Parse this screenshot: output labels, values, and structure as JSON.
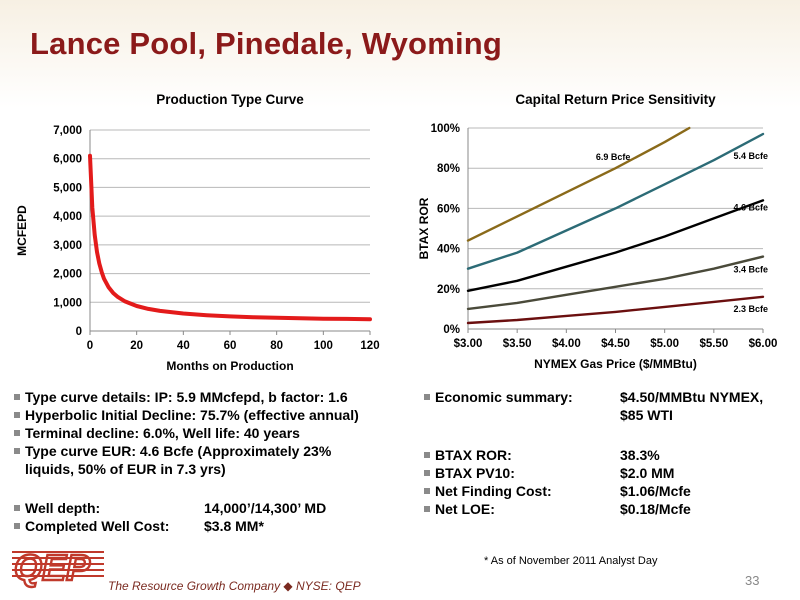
{
  "title": "Lance Pool, Pinedale, Wyoming",
  "chart_data": [
    {
      "type": "line",
      "title": "Production Type Curve",
      "xlabel": "Months on Production",
      "ylabel": "MCFEPD",
      "xlim": [
        0,
        120
      ],
      "ylim": [
        0,
        7000
      ],
      "xticks": [
        "0",
        "20",
        "40",
        "60",
        "80",
        "100",
        "120"
      ],
      "yticks": [
        "0",
        "1,000",
        "2,000",
        "3,000",
        "4,000",
        "5,000",
        "6,000",
        "7,000"
      ],
      "grid": true,
      "series": [
        {
          "color": "#e31b1b",
          "x": [
            0,
            1,
            2,
            3,
            4,
            5,
            6,
            8,
            10,
            12,
            15,
            20,
            25,
            30,
            40,
            50,
            60,
            70,
            80,
            90,
            100,
            110,
            120
          ],
          "y": [
            6100,
            4300,
            3350,
            2750,
            2350,
            2050,
            1820,
            1520,
            1320,
            1180,
            1030,
            870,
            770,
            700,
            610,
            550,
            510,
            480,
            460,
            445,
            430,
            420,
            410
          ]
        }
      ]
    },
    {
      "type": "line",
      "title": "Capital Return Price Sensitivity",
      "xlabel": "NYMEX Gas Price ($/MMBtu)",
      "ylabel": "BTAX ROR",
      "xlim": [
        3.0,
        6.0
      ],
      "ylim": [
        0,
        100
      ],
      "xticks": [
        "$3.00",
        "$3.50",
        "$4.00",
        "$4.50",
        "$5.00",
        "$5.50",
        "$6.00"
      ],
      "yticks": [
        "0%",
        "20%",
        "40%",
        "60%",
        "80%",
        "100%"
      ],
      "grid": true,
      "series": [
        {
          "name": "6.9 Bcfe",
          "color": "#8a6a1a",
          "x": [
            3.0,
            3.5,
            4.0,
            4.5,
            5.0,
            5.25
          ],
          "y": [
            44,
            56,
            68,
            80,
            93,
            101
          ]
        },
        {
          "name": "5.4 Bcfe",
          "color": "#2c6b76",
          "x": [
            3.0,
            3.5,
            4.0,
            4.5,
            5.0,
            5.5,
            6.0
          ],
          "y": [
            30,
            38,
            49,
            60,
            72,
            84,
            97
          ]
        },
        {
          "name": "4.6 Bcfe",
          "color": "#000000",
          "x": [
            3.0,
            3.5,
            4.0,
            4.5,
            5.0,
            5.5,
            6.0
          ],
          "y": [
            19,
            24,
            31,
            38,
            46,
            55,
            64
          ]
        },
        {
          "name": "3.4 Bcfe",
          "color": "#4a4a3a",
          "x": [
            3.0,
            3.5,
            4.0,
            4.5,
            5.0,
            5.5,
            6.0
          ],
          "y": [
            10,
            13,
            17,
            21,
            25,
            30,
            36
          ]
        },
        {
          "name": "2.3 Bcfe",
          "color": "#6b0f0f",
          "x": [
            3.0,
            3.5,
            4.0,
            4.5,
            5.0,
            5.5,
            6.0
          ],
          "y": [
            3,
            4.5,
            6.5,
            8.5,
            11,
            13.5,
            16
          ]
        }
      ]
    }
  ],
  "left_bullets": [
    {
      "text": "Type curve details: IP:  5.9 MMcfepd, b factor: 1.6"
    },
    {
      "text": "Hyperbolic Initial Decline:  75.7% (effective annual)"
    },
    {
      "text": "Terminal decline:  6.0%, Well life:  40 years"
    },
    {
      "text": "Type curve EUR:  4.6 Bcfe (Approximately 23%",
      "cont": "liquids, 50% of EUR in 7.3 yrs)"
    },
    {
      "text": "Well depth:",
      "value": "14,000’/14,300’ MD"
    },
    {
      "text": "Completed Well Cost:",
      "value": "$3.8 MM*"
    }
  ],
  "right_bullets": [
    {
      "text": "Economic summary:",
      "value": "$4.50/MMBtu NYMEX,",
      "cont": "$85 WTI"
    },
    {
      "text": "BTAX ROR:",
      "value": "38.3%"
    },
    {
      "text": "BTAX PV10:",
      "value": "$2.0 MM"
    },
    {
      "text": "Net Finding Cost:",
      "value": "$1.06/Mcfe"
    },
    {
      "text": "Net LOE:",
      "value": "$0.18/Mcfe"
    }
  ],
  "footnote": "* As of November 2011 Analyst Day",
  "page_number": "33",
  "logo": {
    "text": "QEP",
    "color": "#c0392b"
  },
  "tagline": {
    "company": "The Resource Growth Company",
    "separator": "◆",
    "ticker": "NYSE: QEP"
  }
}
